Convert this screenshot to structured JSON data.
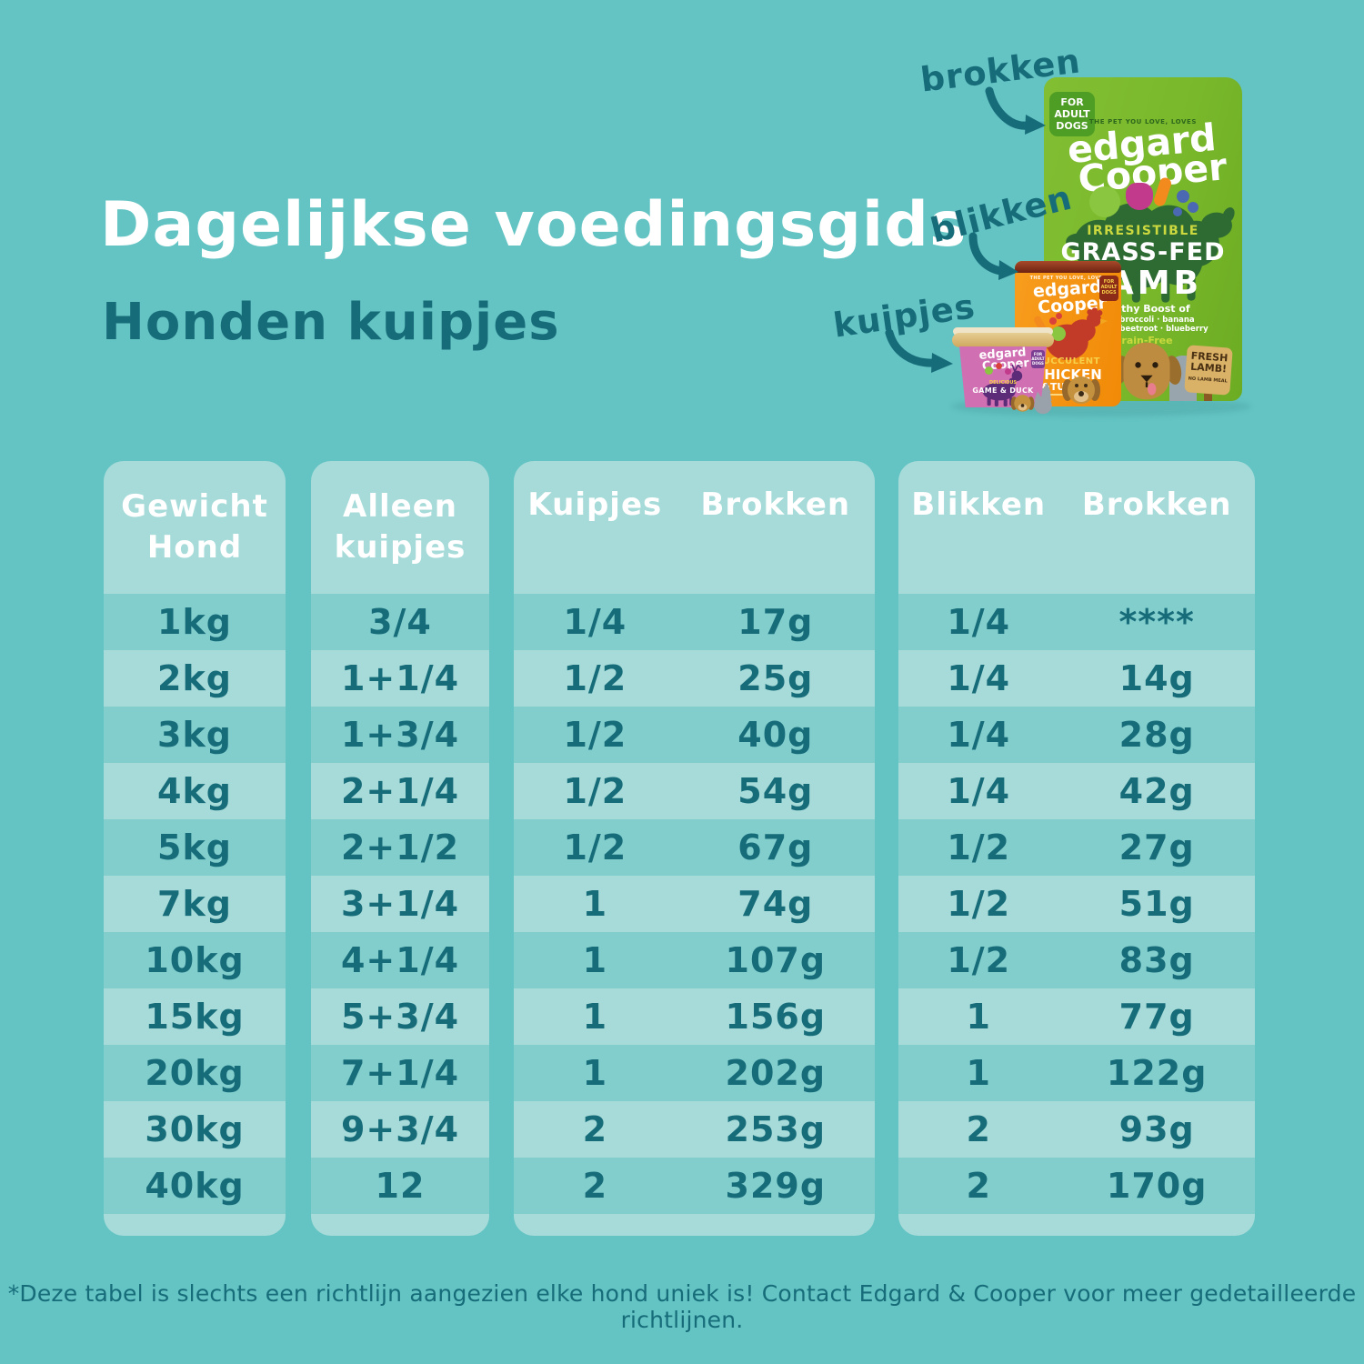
{
  "page": {
    "title": "Dagelijkse voedingsgids",
    "subtitle": "Honden kuipjes",
    "footnote": "*Deze tabel is slechts een richtlijn aangezien elke hond uniek is! Contact Edgard & Cooper voor meer gedetailleerde richtlijnen."
  },
  "colors": {
    "background": "#63C4C3",
    "panel_light": "#A6DBD9",
    "panel_dark": "#81CECD",
    "text_teal": "#176C7A",
    "text_white": "#FFFFFF",
    "bag_green": "#79B82B",
    "can_orange": "#F18A07",
    "tub_pink": "#D06FB2"
  },
  "annotations": {
    "brokken_label": "brokken",
    "blikken_label": "blikken",
    "kuipjes_label": "kuipjes"
  },
  "products": {
    "bag": {
      "badge": "FOR ADULT DOGS",
      "tagline": "THE PET YOU LOVE, LOVES",
      "brand_line1": "edgard",
      "brand_line2": "Cooper",
      "claim": "IRRESISTIBLE",
      "variety_line1": "GRASS-FED",
      "variety_line2": "LAMB",
      "boost_title": "Healthy Boost of",
      "boost_line1": "pear · broccoli · banana",
      "boost_line2": "spinach · beetroot · blueberry",
      "grain_free": "Grain-Free",
      "sign_line1": "FRESH LAMB!",
      "sign_line2": "NO LAMB MEAL"
    },
    "can": {
      "tagline": "THE PET YOU LOVE, LOVES",
      "brand_line1": "edgard",
      "brand_line2": "Cooper",
      "badge": "FOR ADULT DOGS",
      "claim": "SUCCULENT",
      "variety_line1": "CHICKEN",
      "variety_line2": "&TURKEY"
    },
    "tub": {
      "brand_line1": "edgard",
      "brand_line2": "Cooper",
      "badge": "FOR ADULT DOGS",
      "claim": "DELICIOUS",
      "variety": "GAME & DUCK"
    }
  },
  "table": {
    "panels": [
      {
        "header_line1": "Gewicht",
        "header_line2": "Hond"
      },
      {
        "header_line1": "Alleen",
        "header_line2": "kuipjes"
      },
      {
        "header_left": "Kuipjes",
        "header_right": "Brokken"
      },
      {
        "header_left": "Blikken",
        "header_right": "Brokken"
      }
    ],
    "rows": [
      {
        "weight": "1kg",
        "tubs_only": "3/4",
        "tubs": "1/4",
        "tubs_kibble": "17g",
        "cans": "1/4",
        "cans_kibble": "****"
      },
      {
        "weight": "2kg",
        "tubs_only": "1+1/4",
        "tubs": "1/2",
        "tubs_kibble": "25g",
        "cans": "1/4",
        "cans_kibble": "14g"
      },
      {
        "weight": "3kg",
        "tubs_only": "1+3/4",
        "tubs": "1/2",
        "tubs_kibble": "40g",
        "cans": "1/4",
        "cans_kibble": "28g"
      },
      {
        "weight": "4kg",
        "tubs_only": "2+1/4",
        "tubs": "1/2",
        "tubs_kibble": "54g",
        "cans": "1/4",
        "cans_kibble": "42g"
      },
      {
        "weight": "5kg",
        "tubs_only": "2+1/2",
        "tubs": "1/2",
        "tubs_kibble": "67g",
        "cans": "1/2",
        "cans_kibble": "27g"
      },
      {
        "weight": "7kg",
        "tubs_only": "3+1/4",
        "tubs": "1",
        "tubs_kibble": "74g",
        "cans": "1/2",
        "cans_kibble": "51g"
      },
      {
        "weight": "10kg",
        "tubs_only": "4+1/4",
        "tubs": "1",
        "tubs_kibble": "107g",
        "cans": "1/2",
        "cans_kibble": "83g"
      },
      {
        "weight": "15kg",
        "tubs_only": "5+3/4",
        "tubs": "1",
        "tubs_kibble": "156g",
        "cans": "1",
        "cans_kibble": "77g"
      },
      {
        "weight": "20kg",
        "tubs_only": "7+1/4",
        "tubs": "1",
        "tubs_kibble": "202g",
        "cans": "1",
        "cans_kibble": "122g"
      },
      {
        "weight": "30kg",
        "tubs_only": "9+3/4",
        "tubs": "2",
        "tubs_kibble": "253g",
        "cans": "2",
        "cans_kibble": "93g"
      },
      {
        "weight": "40kg",
        "tubs_only": "12",
        "tubs": "2",
        "tubs_kibble": "329g",
        "cans": "2",
        "cans_kibble": "170g"
      }
    ]
  }
}
